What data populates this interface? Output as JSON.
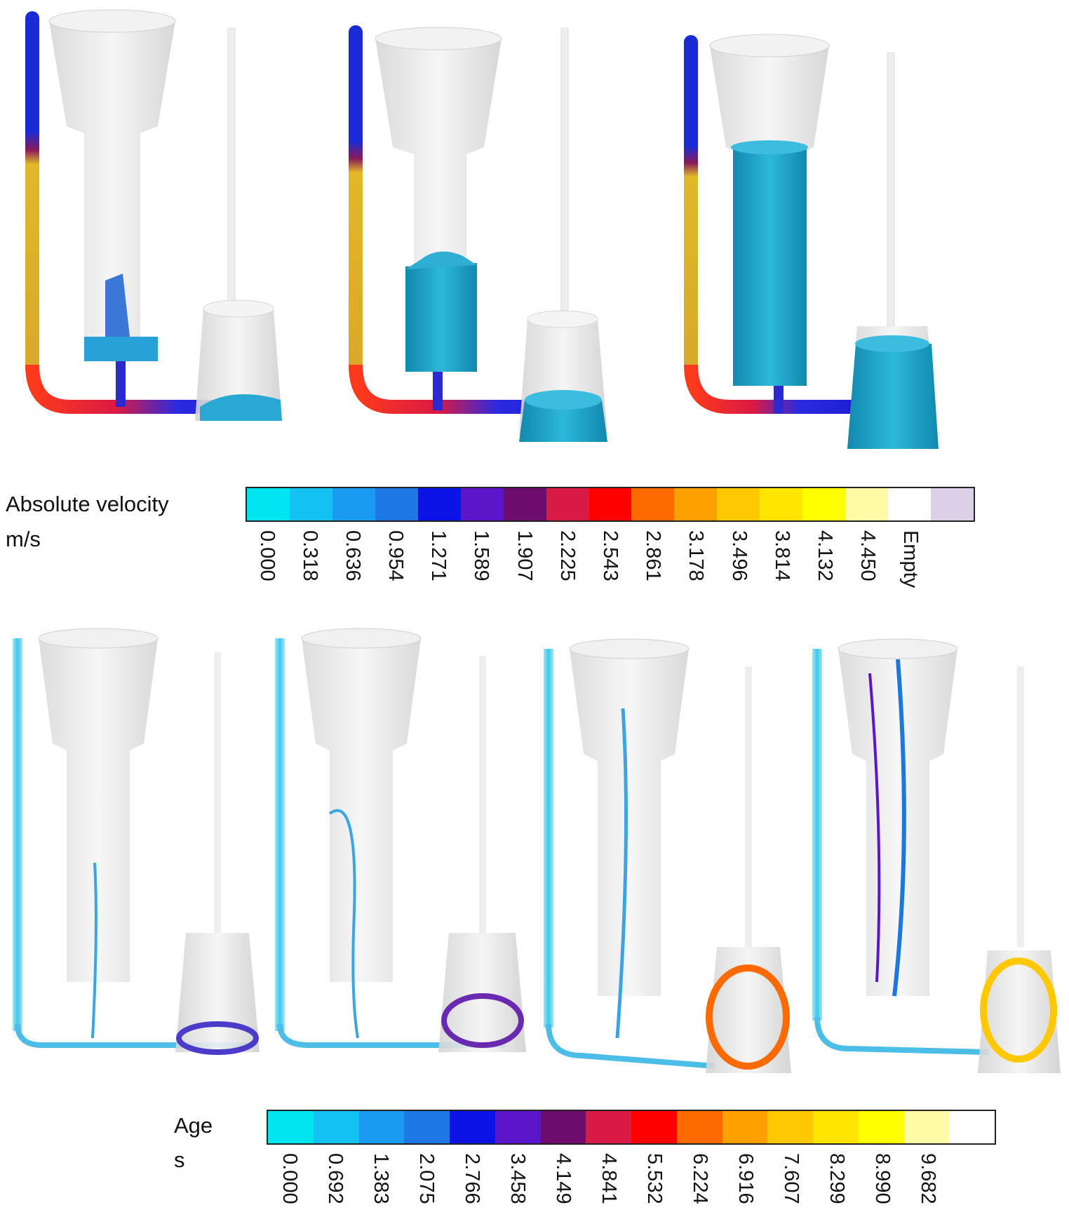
{
  "velocity_legend": {
    "title": "Absolute velocity",
    "unit": "m/s",
    "ticks": [
      "0.000",
      "0.318",
      "0.636",
      "0.954",
      "1.271",
      "1.589",
      "1.907",
      "2.225",
      "2.543",
      "2.861",
      "3.178",
      "3.496",
      "3.814",
      "4.132",
      "4.450",
      "Empty"
    ],
    "colors": [
      "#00e5ef",
      "#14c2f2",
      "#1a9af0",
      "#1d78e6",
      "#0a12e6",
      "#5a16c8",
      "#6e0c6e",
      "#d81a45",
      "#ff0000",
      "#ff6a00",
      "#ffa000",
      "#ffc800",
      "#ffe400",
      "#ffff00",
      "#fffaa8",
      "#ffffff",
      "#dcd0e8"
    ]
  },
  "age_legend": {
    "title": "Age",
    "unit": "s",
    "ticks": [
      "0.000",
      "0.692",
      "1.383",
      "2.075",
      "2.766",
      "3.458",
      "4.149",
      "4.841",
      "5.532",
      "6.224",
      "6.916",
      "7.607",
      "8.299",
      "8.990",
      "9.682"
    ],
    "colors": [
      "#00e5ef",
      "#14c2f2",
      "#1a9af0",
      "#1d78e6",
      "#0a12e6",
      "#5a16c8",
      "#6e0c6e",
      "#d81a45",
      "#ff0000",
      "#ff6a00",
      "#ffa000",
      "#ffc800",
      "#ffe400",
      "#ffff00",
      "#fffaa8",
      "#ffffff"
    ]
  },
  "colors": {
    "mold_gray": "#dcdcdc",
    "fill_blue": "#1ea3c8",
    "downsprue_blue": "#1a2bd6",
    "downsprue_yellow": "#e0b82a"
  }
}
